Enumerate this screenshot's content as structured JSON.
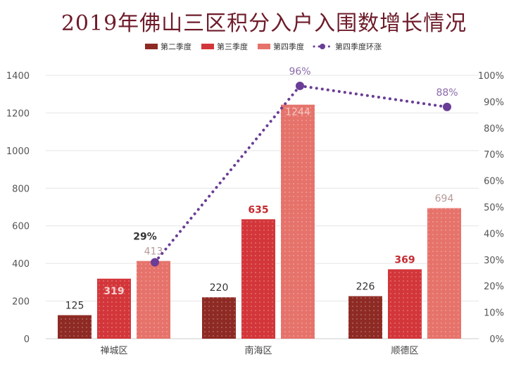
{
  "chart_data": {
    "type": "bar",
    "title": "2019年佛山三区积分入户入围数增长情况",
    "categories": [
      "禅城区",
      "南海区",
      "顺德区"
    ],
    "series": [
      {
        "name": "第二季度",
        "type": "bar",
        "axis": "left",
        "color": "#8e2a24",
        "values": [
          125,
          220,
          226
        ]
      },
      {
        "name": "第三季度",
        "type": "bar",
        "axis": "left",
        "color": "#d3363a",
        "values": [
          319,
          635,
          369
        ]
      },
      {
        "name": "第四季度",
        "type": "bar",
        "axis": "left",
        "color": "#e6736b",
        "values": [
          413,
          1244,
          694
        ]
      },
      {
        "name": "第四季度环涨",
        "type": "line",
        "axis": "right",
        "color": "#6a3d96",
        "style": "dotted",
        "values": [
          29,
          96,
          88
        ],
        "unit": "%"
      }
    ],
    "data_label_colors": [
      "#333333",
      "#c42b30",
      "#b79a9a",
      "#8a6aa8"
    ],
    "y_left": {
      "range": [
        0,
        1400
      ],
      "ticks": [
        "0",
        "200",
        "400",
        "600",
        "800",
        "1000",
        "1200",
        "1400"
      ]
    },
    "y_right": {
      "range": [
        0,
        100
      ],
      "ticks": [
        "0%",
        "10%",
        "20%",
        "30%",
        "40%",
        "50%",
        "60%",
        "70%",
        "80%",
        "90%",
        "100%"
      ]
    },
    "grid": true,
    "legend_placement": "top-center"
  }
}
